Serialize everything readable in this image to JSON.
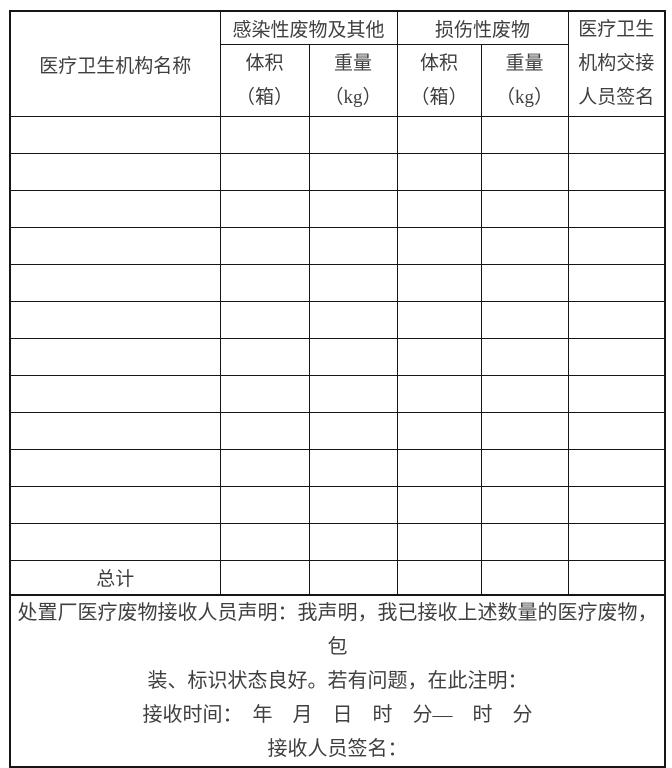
{
  "table": {
    "header": {
      "institution_col": "医疗卫生机构名称",
      "group1": "感染性废物及其他",
      "group2": "损伤性废物",
      "volume_label": "体积",
      "volume_unit": "（箱）",
      "weight_label": "重量",
      "weight_unit": "（kg）",
      "signature_col_lines": [
        "医疗卫生",
        "机构交接",
        "人员签名"
      ]
    },
    "total_row_label": "总计",
    "empty_row_count": "12"
  },
  "footer": {
    "declaration_line1": "处置厂医疗废物接收人员声明：我声明，我已接收上述数量的医疗废物，包",
    "declaration_line2": "装、标识状态良好。若有问题，在此注明：",
    "receive_time_line": "接收时间：　年　月　日　时　分—　时　分",
    "signature_line": "接收人员签名："
  },
  "colors": {
    "border": "#161616",
    "text": "#3f3f3f",
    "background": "#ffffff"
  }
}
